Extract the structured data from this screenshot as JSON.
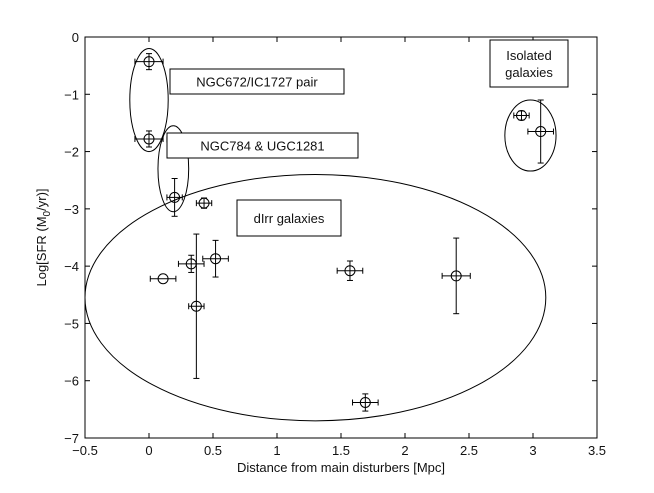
{
  "chart_data": {
    "type": "scatter",
    "xlabel": "Distance from main disturbers [Mpc]",
    "ylabel_main": "Log[SFR (M",
    "ylabel_sub": "0",
    "ylabel_tail": "/yr)]",
    "xlim": [
      -0.5,
      3.5
    ],
    "ylim": [
      -7,
      0
    ],
    "xticks": [
      -0.5,
      0,
      0.5,
      1,
      1.5,
      2,
      2.5,
      3,
      3.5
    ],
    "yticks": [
      0,
      -1,
      -2,
      -3,
      -4,
      -5,
      -6,
      -7
    ],
    "xtick_labels": [
      "−0.5",
      "0",
      "0.5",
      "1",
      "1.5",
      "2",
      "2.5",
      "3",
      "3.5"
    ],
    "ytick_labels": [
      "0",
      "−1",
      "−2",
      "−3",
      "−4",
      "−5",
      "−6",
      "−7"
    ],
    "grid": false,
    "marker": "open-circle-with-cross",
    "points": [
      {
        "x": 0.0,
        "y": -0.43,
        "xerr": 0.11,
        "yerr": 0.14
      },
      {
        "x": 0.0,
        "y": -1.78,
        "xerr": 0.11,
        "yerr": 0.14
      },
      {
        "x": 0.2,
        "y": -1.79,
        "xerr": 0.06,
        "yerr": 0.1
      },
      {
        "x": 0.2,
        "y": -2.8,
        "xerr": 0.06,
        "yerr": 0.33
      },
      {
        "x": 0.43,
        "y": -2.9,
        "xerr": 0.06,
        "yerr": 0.09
      },
      {
        "x": 0.11,
        "y": -4.22,
        "xerr": 0.1,
        "yerr": 0.0
      },
      {
        "x": 0.33,
        "y": -3.96,
        "xerr": 0.1,
        "yerr": 0.15
      },
      {
        "x": 0.37,
        "y": -4.7,
        "xerr": 0.06,
        "yerr": 1.26
      },
      {
        "x": 0.52,
        "y": -3.87,
        "xerr": 0.1,
        "yerr": 0.32
      },
      {
        "x": 1.57,
        "y": -4.08,
        "xerr": 0.1,
        "yerr": 0.17
      },
      {
        "x": 1.69,
        "y": -6.38,
        "xerr": 0.1,
        "yerr": 0.15
      },
      {
        "x": 2.4,
        "y": -4.17,
        "xerr": 0.11,
        "yerr": 0.66
      },
      {
        "x": 2.91,
        "y": -1.37,
        "xerr": 0.06,
        "yerr": 0.08
      },
      {
        "x": 3.06,
        "y": -1.65,
        "xerr": 0.1,
        "yerr": 0.55
      }
    ],
    "groups": [
      {
        "name": "ngc672-pair",
        "cx": 0.0,
        "cy": -1.1,
        "rx": 0.15,
        "ry": 0.9
      },
      {
        "name": "ngc784",
        "cx": 0.19,
        "cy": -2.3,
        "rx": 0.12,
        "ry": 0.75
      },
      {
        "name": "dirr",
        "cx": 1.3,
        "cy": -4.55,
        "rx": 1.8,
        "ry": 2.15
      },
      {
        "name": "isolated",
        "cx": 2.98,
        "cy": -1.72,
        "rx": 0.2,
        "ry": 0.62
      }
    ],
    "annotations": [
      {
        "lines": [
          "NGC672/IC1727 pair"
        ]
      },
      {
        "lines": [
          "NGC784 & UGC1281"
        ]
      },
      {
        "lines": [
          "dIrr galaxies"
        ]
      },
      {
        "lines": [
          "Isolated",
          "galaxies"
        ]
      }
    ]
  }
}
